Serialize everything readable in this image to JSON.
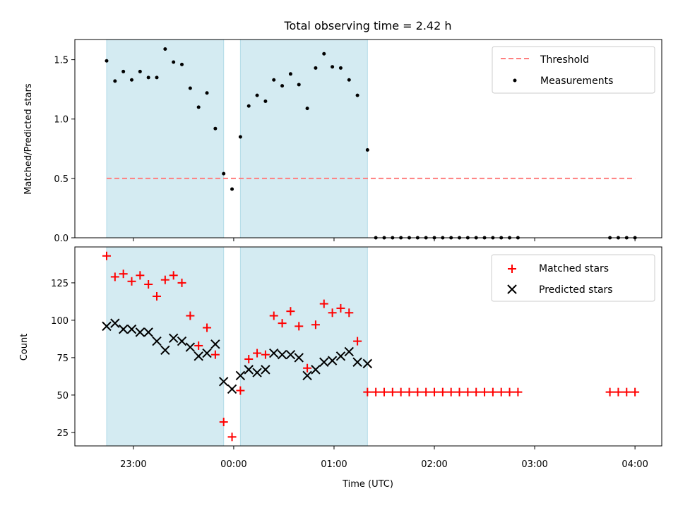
{
  "chart_data": [
    {
      "type": "scatter",
      "title": "Total observing time = 2.42 h",
      "ylabel": "Matched/Predicted stars",
      "xlabel": "",
      "ylim": [
        0,
        1.67
      ],
      "yticks": [
        "0.0",
        "0.5",
        "1.0",
        "1.5"
      ],
      "shaded_intervals": [
        [
          "22:44",
          "23:54"
        ],
        [
          "00:04",
          "01:20"
        ]
      ],
      "threshold": {
        "name": "Threshold",
        "value": 0.5,
        "x_range": [
          "22:44",
          "04:00"
        ],
        "color": "#ff7f7f"
      },
      "legend": [
        "Threshold",
        "Measurements"
      ],
      "legend_position": "upper right",
      "series": [
        {
          "name": "Measurements",
          "color": "#000000",
          "points": [
            [
              "22:44",
              1.49
            ],
            [
              "22:49",
              1.32
            ],
            [
              "22:54",
              1.4
            ],
            [
              "22:59",
              1.33
            ],
            [
              "23:04",
              1.4
            ],
            [
              "23:09",
              1.35
            ],
            [
              "23:14",
              1.35
            ],
            [
              "23:19",
              1.59
            ],
            [
              "23:24",
              1.48
            ],
            [
              "23:29",
              1.46
            ],
            [
              "23:34",
              1.26
            ],
            [
              "23:39",
              1.1
            ],
            [
              "23:44",
              1.22
            ],
            [
              "23:49",
              0.92
            ],
            [
              "23:54",
              0.54
            ],
            [
              "23:59",
              0.41
            ],
            [
              "00:04",
              0.85
            ],
            [
              "00:09",
              1.11
            ],
            [
              "00:14",
              1.2
            ],
            [
              "00:19",
              1.15
            ],
            [
              "00:24",
              1.33
            ],
            [
              "00:29",
              1.28
            ],
            [
              "00:34",
              1.38
            ],
            [
              "00:39",
              1.29
            ],
            [
              "00:44",
              1.09
            ],
            [
              "00:49",
              1.43
            ],
            [
              "00:54",
              1.55
            ],
            [
              "00:59",
              1.44
            ],
            [
              "01:04",
              1.43
            ],
            [
              "01:09",
              1.33
            ],
            [
              "01:14",
              1.2
            ],
            [
              "01:20",
              0.74
            ],
            [
              "01:25",
              0
            ],
            [
              "01:30",
              0
            ],
            [
              "01:35",
              0
            ],
            [
              "01:40",
              0
            ],
            [
              "01:45",
              0
            ],
            [
              "01:50",
              0
            ],
            [
              "01:55",
              0
            ],
            [
              "02:00",
              0
            ],
            [
              "02:05",
              0
            ],
            [
              "02:10",
              0
            ],
            [
              "02:15",
              0
            ],
            [
              "02:20",
              0
            ],
            [
              "02:25",
              0
            ],
            [
              "02:30",
              0
            ],
            [
              "02:35",
              0
            ],
            [
              "02:40",
              0
            ],
            [
              "02:45",
              0
            ],
            [
              "02:50",
              0
            ],
            [
              "03:45",
              0
            ],
            [
              "03:50",
              0
            ],
            [
              "03:55",
              0
            ],
            [
              "04:00",
              0
            ]
          ]
        }
      ]
    },
    {
      "type": "scatter",
      "title": "",
      "ylabel": "Count",
      "xlabel": "Time (UTC)",
      "ylim": [
        16,
        149
      ],
      "yticks": [
        "25",
        "50",
        "75",
        "100",
        "125"
      ],
      "x_ticks": [
        "23:00",
        "00:00",
        "01:00",
        "02:00",
        "03:00",
        "04:00"
      ],
      "shaded_intervals": [
        [
          "22:44",
          "23:54"
        ],
        [
          "00:04",
          "01:20"
        ]
      ],
      "legend": [
        "Matched stars",
        "Predicted stars"
      ],
      "legend_position": "upper right",
      "series": [
        {
          "name": "Matched stars",
          "color": "#ff0000",
          "marker": "+",
          "points": [
            [
              "22:44",
              143
            ],
            [
              "22:49",
              129
            ],
            [
              "22:54",
              131
            ],
            [
              "22:59",
              126
            ],
            [
              "23:04",
              130
            ],
            [
              "23:09",
              124
            ],
            [
              "23:14",
              116
            ],
            [
              "23:19",
              127
            ],
            [
              "23:24",
              130
            ],
            [
              "23:29",
              125
            ],
            [
              "23:34",
              103
            ],
            [
              "23:39",
              83
            ],
            [
              "23:44",
              95
            ],
            [
              "23:49",
              77
            ],
            [
              "23:54",
              32
            ],
            [
              "23:59",
              22
            ],
            [
              "00:04",
              53
            ],
            [
              "00:09",
              74
            ],
            [
              "00:14",
              78
            ],
            [
              "00:19",
              77
            ],
            [
              "00:24",
              103
            ],
            [
              "00:29",
              98
            ],
            [
              "00:34",
              106
            ],
            [
              "00:39",
              96
            ],
            [
              "00:44",
              68
            ],
            [
              "00:49",
              97
            ],
            [
              "00:54",
              111
            ],
            [
              "00:59",
              105
            ],
            [
              "01:04",
              108
            ],
            [
              "01:09",
              105
            ],
            [
              "01:14",
              86
            ],
            [
              "01:20",
              52
            ],
            [
              "01:25",
              52
            ],
            [
              "01:30",
              52
            ],
            [
              "01:35",
              52
            ],
            [
              "01:40",
              52
            ],
            [
              "01:45",
              52
            ],
            [
              "01:50",
              52
            ],
            [
              "01:55",
              52
            ],
            [
              "02:00",
              52
            ],
            [
              "02:05",
              52
            ],
            [
              "02:10",
              52
            ],
            [
              "02:15",
              52
            ],
            [
              "02:20",
              52
            ],
            [
              "02:25",
              52
            ],
            [
              "02:30",
              52
            ],
            [
              "02:35",
              52
            ],
            [
              "02:40",
              52
            ],
            [
              "02:45",
              52
            ],
            [
              "02:50",
              52
            ],
            [
              "03:45",
              52
            ],
            [
              "03:50",
              52
            ],
            [
              "03:55",
              52
            ],
            [
              "04:00",
              52
            ]
          ]
        },
        {
          "name": "Predicted stars",
          "color": "#000000",
          "marker": "x",
          "points": [
            [
              "22:44",
              96
            ],
            [
              "22:49",
              98
            ],
            [
              "22:54",
              94
            ],
            [
              "22:59",
              94
            ],
            [
              "23:04",
              92
            ],
            [
              "23:09",
              92
            ],
            [
              "23:14",
              86
            ],
            [
              "23:19",
              80
            ],
            [
              "23:24",
              88
            ],
            [
              "23:29",
              86
            ],
            [
              "23:34",
              82
            ],
            [
              "23:39",
              76
            ],
            [
              "23:44",
              78
            ],
            [
              "23:49",
              84
            ],
            [
              "23:54",
              59
            ],
            [
              "23:59",
              54
            ],
            [
              "00:04",
              63
            ],
            [
              "00:09",
              67
            ],
            [
              "00:14",
              65
            ],
            [
              "00:19",
              67
            ],
            [
              "00:24",
              78
            ],
            [
              "00:29",
              77
            ],
            [
              "00:34",
              77
            ],
            [
              "00:39",
              75
            ],
            [
              "00:44",
              63
            ],
            [
              "00:49",
              67
            ],
            [
              "00:54",
              72
            ],
            [
              "00:59",
              73
            ],
            [
              "01:04",
              76
            ],
            [
              "01:09",
              79
            ],
            [
              "01:14",
              72
            ],
            [
              "01:20",
              71
            ]
          ]
        }
      ]
    }
  ]
}
